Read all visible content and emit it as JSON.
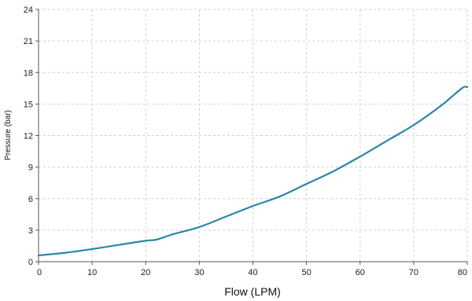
{
  "chart_data": {
    "type": "line",
    "title": "",
    "xlabel": "Flow (LPM)",
    "ylabel": "Pressure (bar)",
    "xlim": [
      0,
      80
    ],
    "ylim": [
      0,
      24
    ],
    "x_ticks": [
      0,
      10,
      20,
      30,
      40,
      50,
      60,
      70,
      80
    ],
    "y_ticks": [
      0,
      3,
      6,
      9,
      12,
      15,
      18,
      21,
      24
    ],
    "grid": true,
    "legend": "none",
    "series": [
      {
        "color": "#2b86a8",
        "x": [
          0,
          5,
          10,
          15,
          20,
          22,
          25,
          30,
          35,
          40,
          45,
          50,
          55,
          60,
          65,
          70,
          75,
          79,
          80
        ],
        "y": [
          0.6,
          0.85,
          1.2,
          1.6,
          2.0,
          2.1,
          2.6,
          3.3,
          4.3,
          5.3,
          6.2,
          7.4,
          8.6,
          10.0,
          11.5,
          13.0,
          14.8,
          16.5,
          16.6
        ]
      }
    ]
  }
}
